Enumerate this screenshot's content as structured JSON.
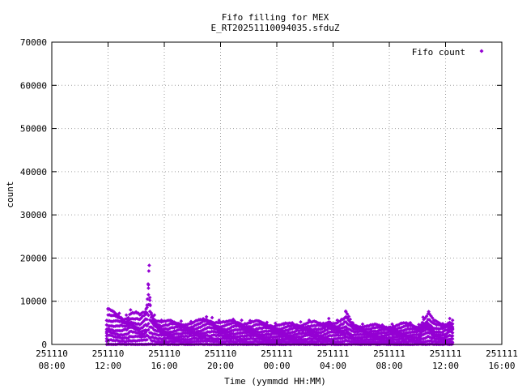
{
  "chart_data": {
    "type": "scatter",
    "title": "Fifo filling for MEX",
    "subtitle": "E_RT20251110094035.sfduZ",
    "xlabel": "Time (yymmdd HH:MM)",
    "ylabel": "count",
    "ylim": [
      0,
      70000
    ],
    "yticks": [
      0,
      10000,
      20000,
      30000,
      40000,
      50000,
      60000,
      70000
    ],
    "xlim_hours": [
      0,
      32
    ],
    "xticks": [
      {
        "h": 0,
        "date": "251110",
        "time": "08:00"
      },
      {
        "h": 4,
        "date": "251110",
        "time": "12:00"
      },
      {
        "h": 8,
        "date": "251110",
        "time": "16:00"
      },
      {
        "h": 12,
        "date": "251110",
        "time": "20:00"
      },
      {
        "h": 16,
        "date": "251111",
        "time": "00:00"
      },
      {
        "h": 20,
        "date": "251111",
        "time": "04:00"
      },
      {
        "h": 24,
        "date": "251111",
        "time": "08:00"
      },
      {
        "h": 28,
        "date": "251111",
        "time": "12:00"
      },
      {
        "h": 32,
        "date": "251111",
        "time": "16:00"
      }
    ],
    "grid": true,
    "legend_position": "top-right",
    "series": [
      {
        "name": "Fifo count",
        "color": "#9400d3",
        "marker": "diamond",
        "x_range_hours": [
          3.9,
          28.5
        ],
        "points": [
          [
            4.0,
            8300
          ],
          [
            4.3,
            7800
          ],
          [
            4.8,
            7200
          ],
          [
            5.3,
            6800
          ],
          [
            5.6,
            8000
          ],
          [
            6.0,
            7500
          ],
          [
            6.3,
            6900
          ],
          [
            6.7,
            8200
          ],
          [
            6.8,
            10500
          ],
          [
            6.85,
            14000
          ],
          [
            6.9,
            17000
          ],
          [
            6.93,
            18300
          ],
          [
            7.0,
            9000
          ],
          [
            7.3,
            6800
          ],
          [
            7.8,
            5600
          ],
          [
            8.5,
            5500
          ],
          [
            9.2,
            5400
          ],
          [
            9.9,
            5300
          ],
          [
            10.5,
            5700
          ],
          [
            11.0,
            6400
          ],
          [
            11.4,
            6200
          ],
          [
            11.9,
            5600
          ],
          [
            12.4,
            5300
          ],
          [
            12.9,
            5800
          ],
          [
            13.5,
            5600
          ],
          [
            14.1,
            5500
          ],
          [
            14.7,
            5400
          ],
          [
            15.3,
            5100
          ],
          [
            15.9,
            4900
          ],
          [
            16.5,
            4800
          ],
          [
            17.1,
            5000
          ],
          [
            17.7,
            5200
          ],
          [
            18.3,
            5600
          ],
          [
            18.8,
            5200
          ],
          [
            19.3,
            4900
          ],
          [
            19.7,
            6000
          ],
          [
            20.3,
            5600
          ],
          [
            20.8,
            6000
          ],
          [
            20.9,
            7700
          ],
          [
            21.4,
            5000
          ],
          [
            22.1,
            4700
          ],
          [
            22.8,
            4600
          ],
          [
            23.5,
            4500
          ],
          [
            24.2,
            4700
          ],
          [
            24.9,
            4900
          ],
          [
            25.5,
            5000
          ],
          [
            26.1,
            4600
          ],
          [
            26.4,
            6300
          ],
          [
            26.8,
            7600
          ],
          [
            27.2,
            5500
          ],
          [
            27.8,
            4800
          ],
          [
            28.3,
            6000
          ],
          [
            28.5,
            5600
          ]
        ]
      }
    ]
  }
}
